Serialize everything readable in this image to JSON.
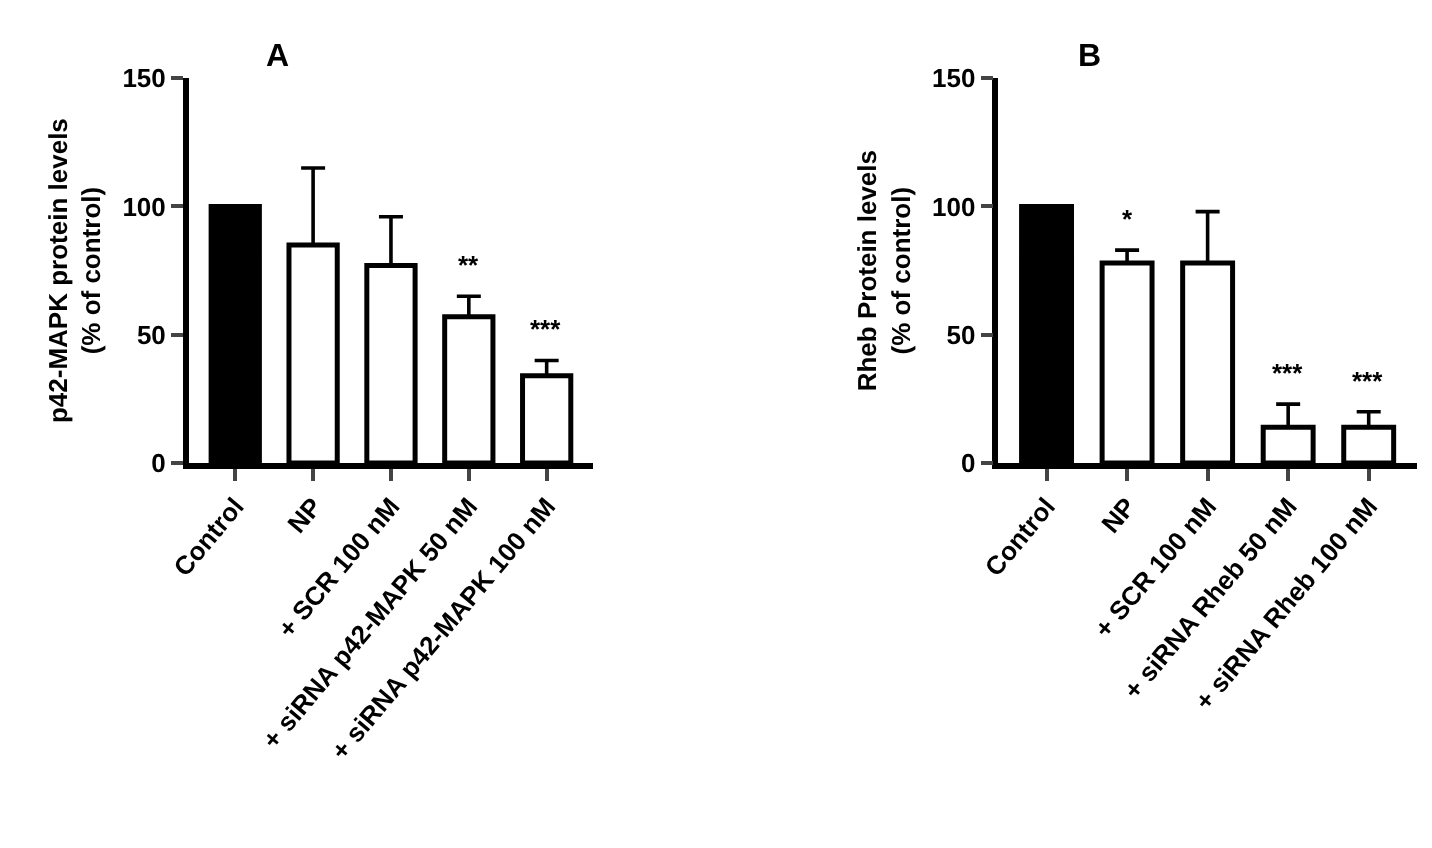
{
  "chart_data": [
    {
      "type": "bar",
      "title": "A",
      "ylabel": "p42-MAPK protein levels\n(% of control)",
      "categories": [
        "Control",
        "NP",
        "+ SCR 100 nM",
        "+ siRNA p42-MAPK 50 nM",
        "+ siRNA p42-MAPK 100 nM"
      ],
      "values": [
        100,
        85,
        77,
        57,
        34
      ],
      "colors": [
        "#000000",
        "#ffffff",
        "#ffffff",
        "#ffffff",
        "#ffffff"
      ],
      "errors": [
        null,
        [
          85,
          115
        ],
        [
          77,
          96
        ],
        [
          57,
          65
        ],
        [
          34,
          40
        ]
      ],
      "value_labels": [
        null,
        null,
        null,
        "**",
        "***"
      ],
      "ylim": [
        0,
        150
      ],
      "yticks": [
        0,
        50,
        100,
        150
      ]
    },
    {
      "type": "bar",
      "title": "B",
      "ylabel": "Rheb Protein levels\n(% of control)",
      "categories": [
        "Control",
        "NP",
        "+ SCR 100 nM",
        "+ siRNA Rheb 50 nM",
        "+ siRNA Rheb 100 nM"
      ],
      "values": [
        100,
        78,
        78,
        14,
        14
      ],
      "colors": [
        "#000000",
        "#ffffff",
        "#ffffff",
        "#ffffff",
        "#ffffff"
      ],
      "errors": [
        null,
        [
          78,
          83
        ],
        [
          78,
          98
        ],
        [
          14,
          23
        ],
        [
          14,
          20
        ]
      ],
      "value_labels": [
        null,
        "*",
        null,
        "***",
        "***"
      ],
      "ylim": [
        0,
        150
      ],
      "yticks": [
        0,
        50,
        100,
        150
      ]
    }
  ]
}
